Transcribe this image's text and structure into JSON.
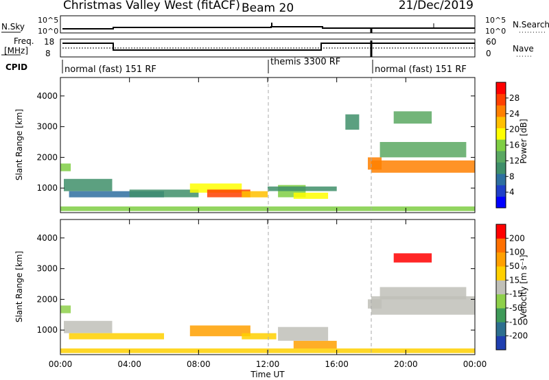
{
  "header": {
    "site": "Christmas Valley West (fitACF)",
    "beam": "Beam 20",
    "date": "21/Dec/2019"
  },
  "status_panel": {
    "left_label": "N.Sky",
    "right_label": "N.Search",
    "left_ticks": [
      "10^5",
      "10^0"
    ],
    "right_ticks": [
      "10^5",
      "10^0"
    ]
  },
  "freq_panel": {
    "left_label_line1": "Freq.",
    "left_label_line2": "[MHz]",
    "right_label": "Nave",
    "left_ticks": [
      "18",
      "8"
    ],
    "right_ticks": [
      "60",
      "0"
    ]
  },
  "cpid_panel": {
    "label": "CPID",
    "segments": [
      {
        "label": "normal (fast) 151 RF",
        "start_hour": 0,
        "end_hour": 12
      },
      {
        "label": "themis 3300 RF",
        "start_hour": 12,
        "end_hour": 18
      },
      {
        "label": "normal (fast) 151 RF",
        "start_hour": 18,
        "end_hour": 24
      }
    ]
  },
  "chart_data": [
    {
      "type": "heatmap",
      "title": "",
      "ylabel": "Slant Range [km]",
      "xlabel": "",
      "ylim": [
        200,
        4600
      ],
      "yticks": [
        1000,
        2000,
        3000,
        4000
      ],
      "xlim": [
        0,
        24
      ],
      "colorbar": {
        "label": "Power [dB]",
        "ticks": [
          "4",
          "8",
          "12",
          "16",
          "20",
          "24",
          "28"
        ],
        "colors": [
          "#0000ff",
          "#2040c8",
          "#2e6fa0",
          "#3f8f6a",
          "#5aa862",
          "#7fce44",
          "#ffff00",
          "#ffc000",
          "#ff8000",
          "#ff4000",
          "#ff0000"
        ]
      },
      "regions": [
        {
          "t0": 0.0,
          "t1": 0.6,
          "r0": 1550,
          "r1": 1800,
          "level": 5
        },
        {
          "t0": 0.2,
          "t1": 3.0,
          "r0": 900,
          "r1": 1300,
          "level": 3
        },
        {
          "t0": 0.5,
          "t1": 6.0,
          "r0": 700,
          "r1": 900,
          "level": 2
        },
        {
          "t0": 4.0,
          "t1": 8.0,
          "r0": 700,
          "r1": 950,
          "level": 3
        },
        {
          "t0": 7.5,
          "t1": 10.5,
          "r0": 850,
          "r1": 1150,
          "level": 6
        },
        {
          "t0": 8.5,
          "t1": 11.0,
          "r0": 700,
          "r1": 950,
          "level": 9
        },
        {
          "t0": 10.5,
          "t1": 12.0,
          "r0": 700,
          "r1": 900,
          "level": 7
        },
        {
          "t0": 12.6,
          "t1": 14.2,
          "r0": 700,
          "r1": 1100,
          "level": 5
        },
        {
          "t0": 13.5,
          "t1": 15.5,
          "r0": 650,
          "r1": 850,
          "level": 6
        },
        {
          "t0": 12.0,
          "t1": 16.0,
          "r0": 900,
          "r1": 1050,
          "level": 3
        },
        {
          "t0": 16.5,
          "t1": 17.3,
          "r0": 2900,
          "r1": 3400,
          "level": 3
        },
        {
          "t0": 17.8,
          "t1": 18.6,
          "r0": 1600,
          "r1": 2000,
          "level": 8
        },
        {
          "t0": 18.0,
          "t1": 24.0,
          "r0": 1500,
          "r1": 1900,
          "level": 8
        },
        {
          "t0": 18.5,
          "t1": 23.5,
          "r0": 2000,
          "r1": 2500,
          "level": 4
        },
        {
          "t0": 19.3,
          "t1": 21.5,
          "r0": 3100,
          "r1": 3500,
          "level": 4
        },
        {
          "t0": 0.0,
          "t1": 24.0,
          "r0": 250,
          "r1": 400,
          "level": 5
        }
      ]
    },
    {
      "type": "heatmap",
      "title": "",
      "ylabel": "Slant Range [km]",
      "xlabel": "Time UT",
      "ylim": [
        200,
        4600
      ],
      "yticks": [
        1000,
        2000,
        3000,
        4000
      ],
      "xlim": [
        0,
        24
      ],
      "xticks": [
        "00:00",
        "04:00",
        "08:00",
        "12:00",
        "16:00",
        "20:00",
        "00:00"
      ],
      "colorbar": {
        "label": "Velocity [m s⁻¹]",
        "ticks": [
          "200",
          "100",
          "50",
          "15",
          "-15",
          "-50",
          "-100",
          "-200"
        ],
        "colors": [
          "#1f3fb0",
          "#2d6f8f",
          "#3f9a59",
          "#8ed04a",
          "#c0c0b8",
          "#ffd000",
          "#ffa000",
          "#ff7000",
          "#ff0000"
        ]
      },
      "regions": [
        {
          "t0": 0.0,
          "t1": 0.6,
          "r0": 1550,
          "r1": 1800,
          "level": 3
        },
        {
          "t0": 0.2,
          "t1": 3.0,
          "r0": 900,
          "r1": 1300,
          "level": 4
        },
        {
          "t0": 0.5,
          "t1": 6.0,
          "r0": 700,
          "r1": 900,
          "level": 5
        },
        {
          "t0": 7.5,
          "t1": 11.0,
          "r0": 800,
          "r1": 1150,
          "level": 6
        },
        {
          "t0": 10.5,
          "t1": 12.5,
          "r0": 700,
          "r1": 900,
          "level": 5
        },
        {
          "t0": 12.6,
          "t1": 15.5,
          "r0": 650,
          "r1": 1100,
          "level": 4
        },
        {
          "t0": 13.5,
          "t1": 16.0,
          "r0": 400,
          "r1": 650,
          "level": 6
        },
        {
          "t0": 17.8,
          "t1": 18.6,
          "r0": 1700,
          "r1": 2000,
          "level": 4
        },
        {
          "t0": 18.0,
          "t1": 24.0,
          "r0": 1500,
          "r1": 2100,
          "level": 4
        },
        {
          "t0": 18.5,
          "t1": 23.5,
          "r0": 2000,
          "r1": 2400,
          "level": 4
        },
        {
          "t0": 19.3,
          "t1": 21.5,
          "r0": 3200,
          "r1": 3500,
          "level": 8
        },
        {
          "t0": 0.0,
          "t1": 24.0,
          "r0": 250,
          "r1": 400,
          "level": 5
        }
      ]
    }
  ]
}
